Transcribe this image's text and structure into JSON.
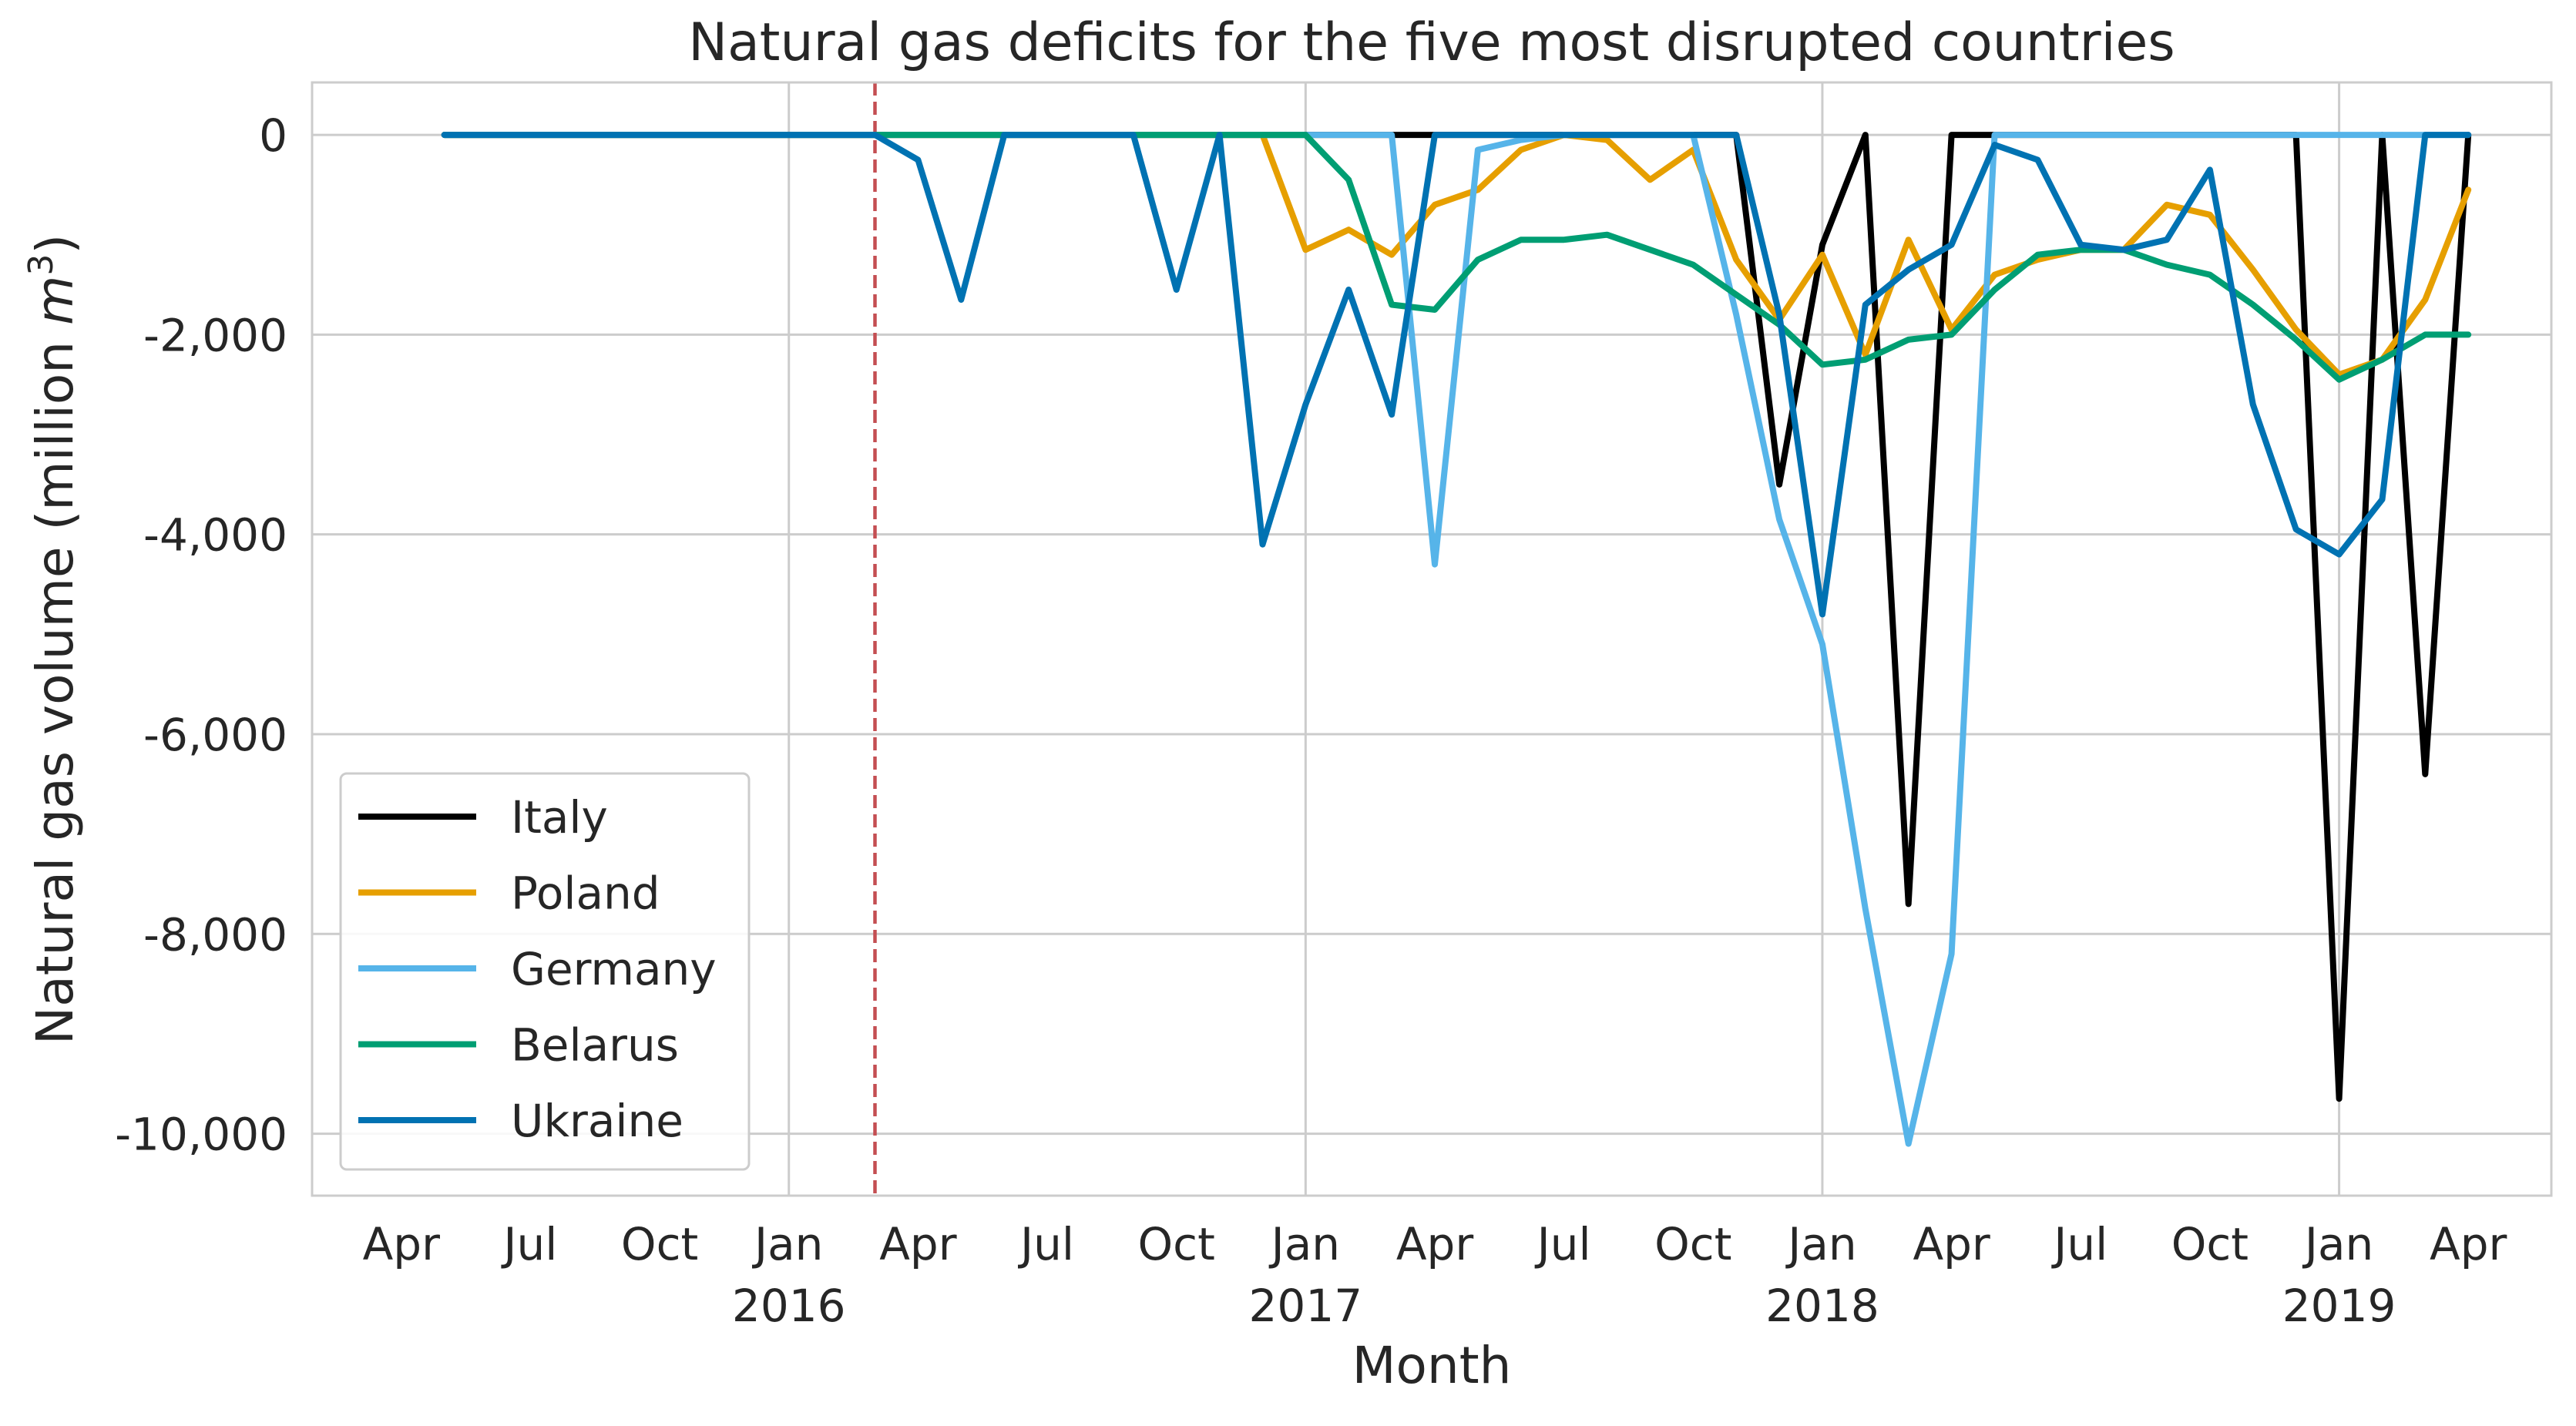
{
  "chart_data": {
    "type": "line",
    "title": "Natural gas deficits for the five most disrupted countries",
    "xlabel": "Month",
    "ylabel": "Natural gas volume (million m³)",
    "ylabel_parts": {
      "main": "Natural gas volume (million ",
      "unit": "m",
      "exp": "3",
      "close": ")"
    },
    "ylim": [
      -10620,
      525
    ],
    "yticks": [
      0,
      -2000,
      -4000,
      -6000,
      -8000,
      -10000
    ],
    "ytick_labels": [
      "0",
      "-2,000",
      "-4,000",
      "-6,000",
      "-8,000",
      "-10,000"
    ],
    "xticks": [
      {
        "date": "2015-04",
        "label": "Apr",
        "year": ""
      },
      {
        "date": "2015-07",
        "label": "Jul",
        "year": ""
      },
      {
        "date": "2015-10",
        "label": "Oct",
        "year": ""
      },
      {
        "date": "2016-01",
        "label": "Jan",
        "year": "2016"
      },
      {
        "date": "2016-04",
        "label": "Apr",
        "year": ""
      },
      {
        "date": "2016-07",
        "label": "Jul",
        "year": ""
      },
      {
        "date": "2016-10",
        "label": "Oct",
        "year": ""
      },
      {
        "date": "2017-01",
        "label": "Jan",
        "year": "2017"
      },
      {
        "date": "2017-04",
        "label": "Apr",
        "year": ""
      },
      {
        "date": "2017-07",
        "label": "Jul",
        "year": ""
      },
      {
        "date": "2017-10",
        "label": "Oct",
        "year": ""
      },
      {
        "date": "2018-01",
        "label": "Jan",
        "year": "2018"
      },
      {
        "date": "2018-04",
        "label": "Apr",
        "year": ""
      },
      {
        "date": "2018-07",
        "label": "Jul",
        "year": ""
      },
      {
        "date": "2018-10",
        "label": "Oct",
        "year": ""
      },
      {
        "date": "2019-01",
        "label": "Jan",
        "year": "2019"
      },
      {
        "date": "2019-04",
        "label": "Apr",
        "year": ""
      }
    ],
    "xlim": [
      "2015-02",
      "2019-06"
    ],
    "grid": true,
    "legend": "lower-left",
    "reference_line": {
      "date": "2016-03",
      "color": "#c44e52",
      "style": "dashed"
    },
    "x_start": "2015-05",
    "x_end": "2019-04",
    "series": [
      {
        "name": "Italy",
        "color": "#000000",
        "values": [
          0,
          0,
          0,
          0,
          0,
          0,
          0,
          0,
          0,
          0,
          0,
          0,
          0,
          0,
          0,
          0,
          0,
          0,
          0,
          0,
          0,
          0,
          0,
          0,
          0,
          0,
          0,
          0,
          0,
          0,
          0,
          -3500,
          -1100,
          0,
          -7700,
          0,
          0,
          0,
          0,
          0,
          0,
          0,
          0,
          0,
          -9650,
          0,
          -6400,
          0
        ]
      },
      {
        "name": "Poland",
        "color": "#e69f00",
        "values": [
          0,
          0,
          0,
          0,
          0,
          0,
          0,
          0,
          0,
          0,
          0,
          0,
          0,
          0,
          0,
          0,
          0,
          0,
          0,
          0,
          -1150,
          -950,
          -1200,
          -700,
          -550,
          -150,
          0,
          -50,
          -450,
          -150,
          -1250,
          -1850,
          -1200,
          -2200,
          -1050,
          -1950,
          -1400,
          -1250,
          -1150,
          -1150,
          -700,
          -800,
          -1350,
          -1950,
          -2400,
          -2250,
          -1650,
          -550
        ]
      },
      {
        "name": "Germany",
        "color": "#56b4e9",
        "values": [
          0,
          0,
          0,
          0,
          0,
          0,
          0,
          0,
          0,
          0,
          0,
          0,
          0,
          0,
          0,
          0,
          0,
          0,
          0,
          0,
          0,
          0,
          0,
          -4300,
          -150,
          -50,
          0,
          0,
          0,
          0,
          -1800,
          -3850,
          -5100,
          -7750,
          -10100,
          -8200,
          0,
          0,
          0,
          0,
          0,
          0,
          0,
          0,
          0,
          0,
          0,
          0
        ]
      },
      {
        "name": "Belarus",
        "color": "#009e73",
        "values": [
          0,
          0,
          0,
          0,
          0,
          0,
          0,
          0,
          0,
          0,
          0,
          0,
          0,
          0,
          0,
          0,
          0,
          0,
          0,
          0,
          0,
          -450,
          -1700,
          -1750,
          -1250,
          -1050,
          -1050,
          -1000,
          -1150,
          -1300,
          -1600,
          -1900,
          -2300,
          -2250,
          -2050,
          -2000,
          -1550,
          -1200,
          -1150,
          -1150,
          -1300,
          -1400,
          -1700,
          -2050,
          -2450,
          -2250,
          -2000,
          -2000
        ]
      },
      {
        "name": "Ukraine",
        "color": "#0072b2",
        "values": [
          0,
          0,
          0,
          0,
          0,
          0,
          0,
          0,
          0,
          0,
          0,
          -250,
          -1650,
          0,
          0,
          0,
          0,
          -1550,
          0,
          -4100,
          -2700,
          -1550,
          -2800,
          0,
          0,
          0,
          0,
          0,
          0,
          0,
          0,
          -1800,
          -4800,
          -1700,
          -1350,
          -1100,
          -100,
          -250,
          -1100,
          -1150,
          -1050,
          -350,
          -2700,
          -3950,
          -4200,
          -3650,
          0,
          0
        ]
      }
    ]
  }
}
